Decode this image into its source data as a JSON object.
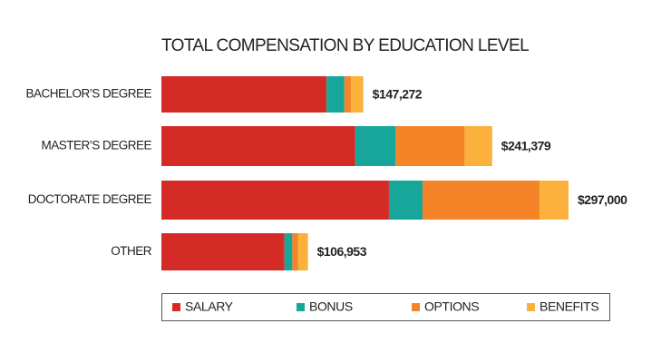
{
  "chart_data": {
    "type": "stacked-bar-horizontal",
    "title": "TOTAL COMPENSATION BY EDUCATION LEVEL",
    "categories": [
      "BACHELOR’S DEGREE",
      "MASTER’S DEGREE",
      "DOCTORATE DEGREE",
      "OTHER"
    ],
    "series": [
      {
        "name": "SALARY",
        "color": "#d52b27",
        "values": [
          120500,
          141400,
          166000,
          89800
        ]
      },
      {
        "name": "BONUS",
        "color": "#17a79a",
        "values": [
          13000,
          29500,
          24500,
          5700
        ]
      },
      {
        "name": "OPTIONS",
        "color": "#f58428",
        "values": [
          4800,
          50300,
          85300,
          4300
        ]
      },
      {
        "name": "BENEFITS",
        "color": "#fbb13c",
        "values": [
          9000,
          20100,
          21200,
          7100
        ]
      }
    ],
    "totals": [
      147272,
      241379,
      297000,
      106953
    ],
    "total_labels": [
      "$147,272",
      "$241,379",
      "$297,000",
      "$106,953"
    ]
  }
}
